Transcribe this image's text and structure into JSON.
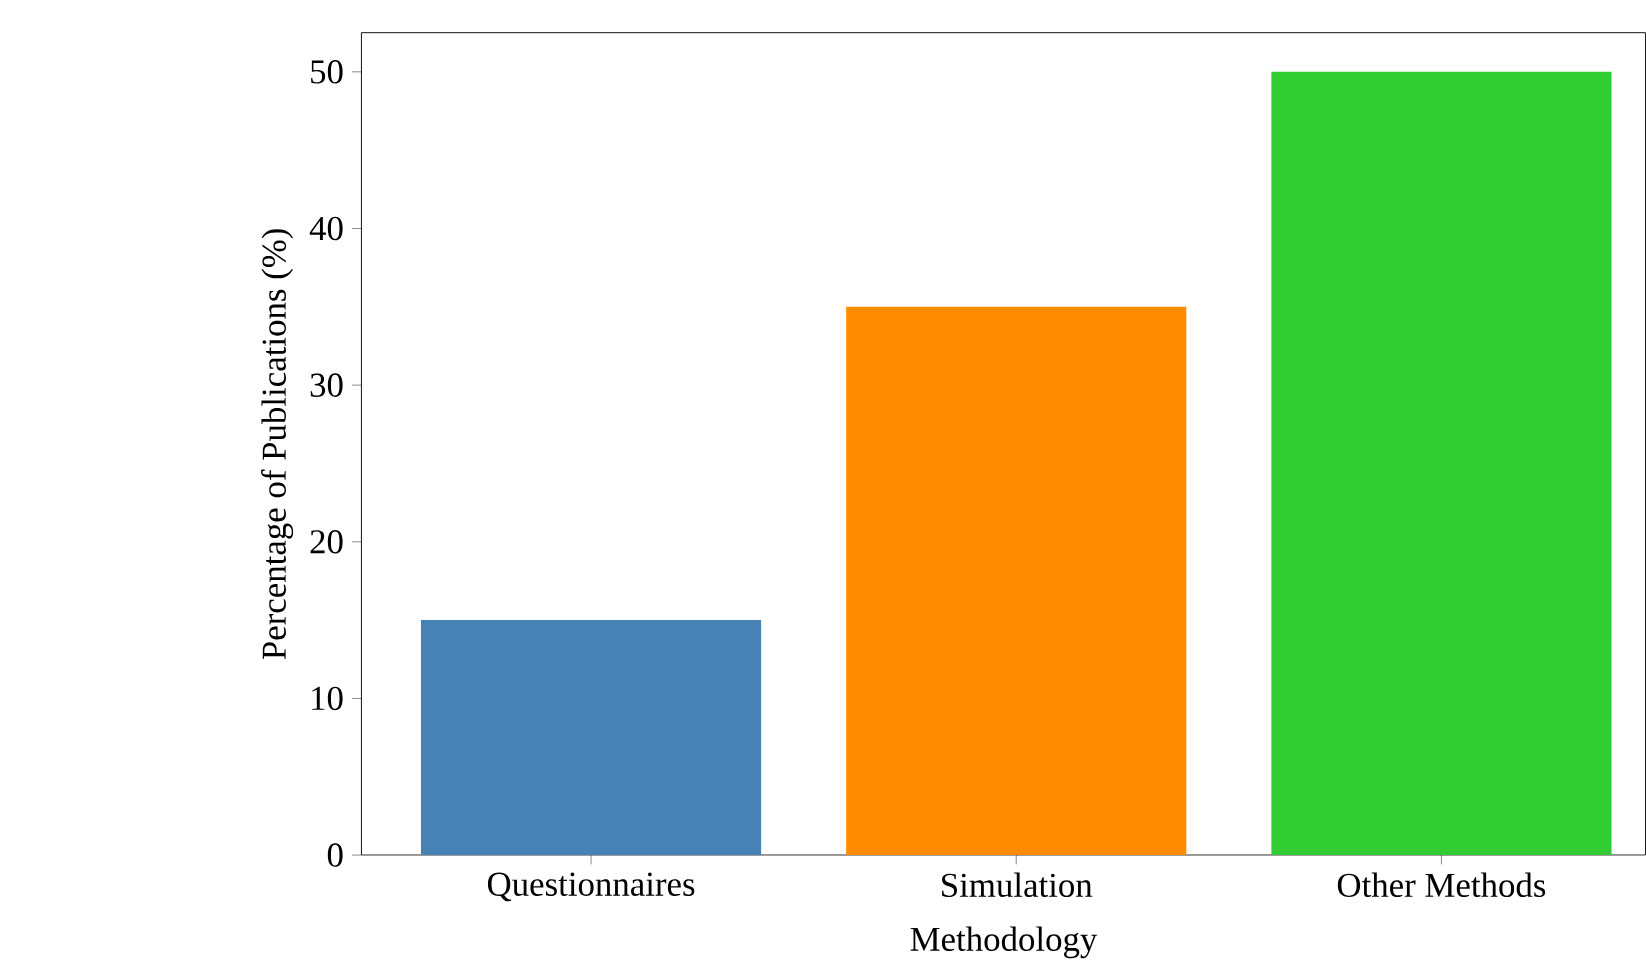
{
  "chart_data": {
    "type": "bar",
    "xlabel": "Methodology",
    "ylabel": "Percentage of Publications (%)",
    "categories": [
      "Questionnaires",
      "Simulation",
      "Other Methods"
    ],
    "values": [
      15,
      35,
      50
    ],
    "colors": [
      "#4682b4",
      "#ff8c00",
      "#32cd32"
    ],
    "ylim": [
      0,
      52.5
    ],
    "yticks": [
      0,
      10,
      20,
      30,
      40,
      50
    ]
  }
}
